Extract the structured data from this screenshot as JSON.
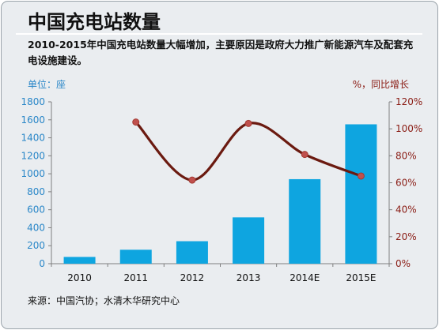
{
  "title": "中国充电站数量",
  "description": "2010-2015年中国充电站数量大幅增加，主要原因是政府大力推广新能源汽车及配套充电设施建设。",
  "unit_left": "单位：座",
  "unit_right": "%，同比增长",
  "source": "来源：中国汽协；水清木华研究中心",
  "colors": {
    "bar": "#0ea5e0",
    "line": "#6b1a10",
    "marker": "#c0504d"
  },
  "chart_data": {
    "type": "bar",
    "categories": [
      "2010",
      "2011",
      "2012",
      "2013",
      "2014E",
      "2015E"
    ],
    "series": [
      {
        "type": "bar",
        "axis": "left",
        "values": [
          75,
          155,
          250,
          515,
          940,
          1550
        ]
      },
      {
        "type": "line",
        "axis": "right",
        "values": [
          null,
          1.05,
          0.62,
          1.04,
          0.81,
          0.65
        ]
      }
    ],
    "y_left": {
      "lim": [
        0,
        1800
      ],
      "ticks": [
        "0",
        "200",
        "400",
        "600",
        "800",
        "1000",
        "1200",
        "1400",
        "1600",
        "1800"
      ]
    },
    "y_right": {
      "lim": [
        0,
        1.2
      ],
      "ticks": [
        "0%",
        "20%",
        "40%",
        "60%",
        "80%",
        "100%",
        "120%"
      ]
    },
    "grid": false,
    "legend": "none"
  }
}
